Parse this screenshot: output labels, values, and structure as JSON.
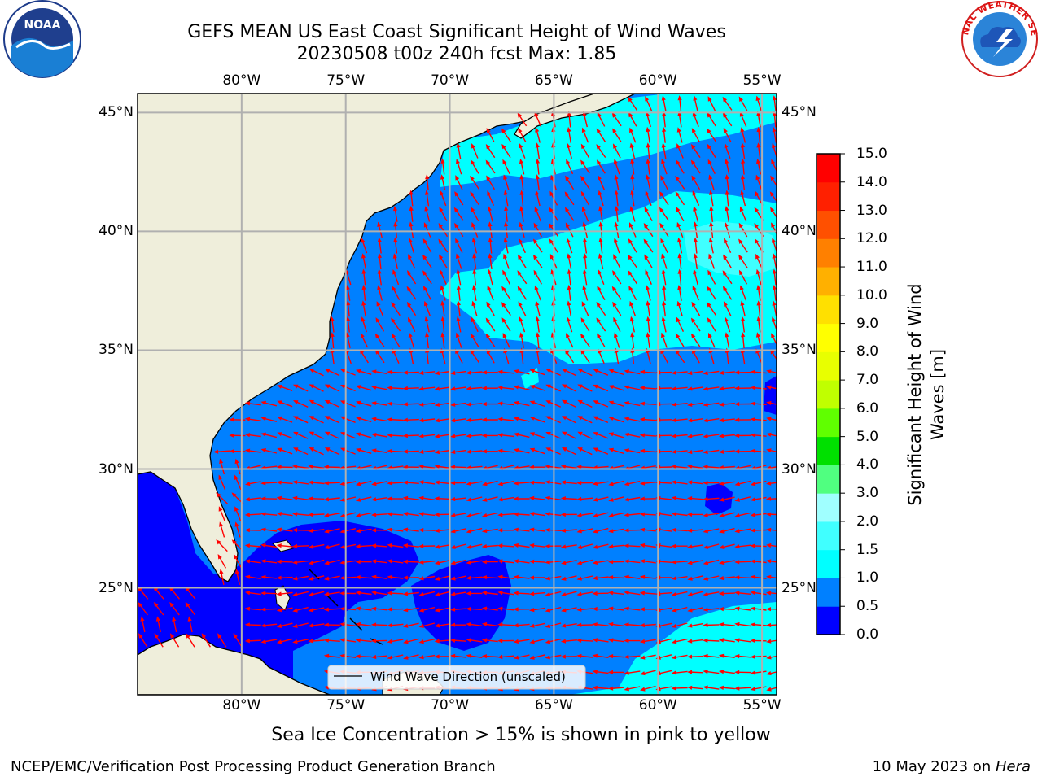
{
  "title": {
    "line1": "GEFS MEAN US East Coast Significant Height of Wind Waves",
    "line2": "20230508 t00z 240h fcst   Max: 1.85"
  },
  "map": {
    "extent": {
      "lon_min": -85,
      "lon_max": -54.3,
      "lat_min": 20.5,
      "lat_max": 45.8
    },
    "lon_ticks": [
      {
        "lon": -80,
        "label": "80°W"
      },
      {
        "lon": -75,
        "label": "75°W"
      },
      {
        "lon": -70,
        "label": "70°W"
      },
      {
        "lon": -65,
        "label": "65°W"
      },
      {
        "lon": -60,
        "label": "60°W"
      },
      {
        "lon": -55,
        "label": "55°W"
      }
    ],
    "lat_ticks": [
      {
        "lat": 45,
        "label": "45°N"
      },
      {
        "lat": 40,
        "label": "40°N"
      },
      {
        "lat": 35,
        "label": "35°N"
      },
      {
        "lat": 30,
        "label": "30°N"
      },
      {
        "lat": 25,
        "label": "25°N"
      }
    ],
    "gridlines": true,
    "land_color": "#efeedb",
    "arrow_color": "#ff0000",
    "legend_label": "Wind Wave Direction (unscaled)",
    "legend_placement": "bottom-center"
  },
  "colorbar": {
    "title_line1": "Significant Height of Wind",
    "title_line2": "Waves [m]",
    "levels": [
      "0.0",
      "0.5",
      "1.0",
      "1.5",
      "2.0",
      "3.0",
      "4.0",
      "5.0",
      "6.0",
      "7.0",
      "8.0",
      "9.0",
      "10.0",
      "11.0",
      "12.0",
      "13.0",
      "14.0",
      "15.0"
    ],
    "colors": [
      "#0000ff",
      "#0080ff",
      "#00ffff",
      "#40ffff",
      "#a0ffff",
      "#50ff80",
      "#00e000",
      "#60ff00",
      "#c0ff00",
      "#e8ff00",
      "#ffff00",
      "#ffe000",
      "#ffb000",
      "#ff8000",
      "#ff5000",
      "#ff2000",
      "#ff0000"
    ]
  },
  "caption": "Sea Ice Concentration > 15% is shown in pink to yellow",
  "footer": {
    "left": "NCEP/EMC/Verification Post Processing Product Generation Branch",
    "right_date": "10 May 2023 on ",
    "right_host": "Hera"
  },
  "logos": {
    "noaa_text": "NOAA",
    "nws_text": "NATIONAL WEATHER SERVICE"
  }
}
